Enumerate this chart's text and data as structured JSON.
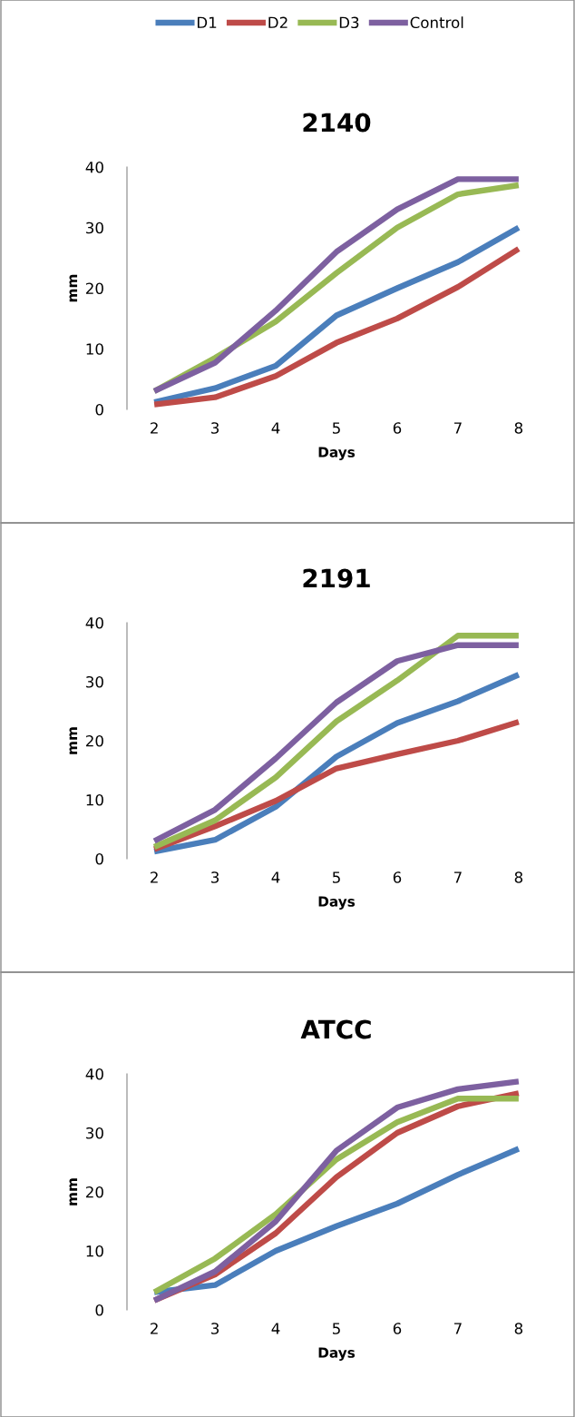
{
  "chart_data": [
    {
      "type": "line",
      "title": "2140",
      "xlabel": "Days",
      "ylabel": "mm",
      "categories": [
        "2",
        "3",
        "4",
        "5",
        "6",
        "7",
        "8"
      ],
      "ylim": [
        0,
        40
      ],
      "yticks": [
        0,
        10,
        20,
        30,
        40
      ],
      "grid": false,
      "legend": "top",
      "marker": "none",
      "line_style": "solid",
      "series": [
        {
          "name": "D1",
          "color": "#4a7ebb",
          "values": [
            1.2,
            3.5,
            7.2,
            15.5,
            20,
            24.3,
            30
          ]
        },
        {
          "name": "D2",
          "color": "#be4b48",
          "values": [
            0.8,
            2,
            5.5,
            11,
            15,
            20.2,
            26.5
          ]
        },
        {
          "name": "D3",
          "color": "#98b954",
          "values": [
            3,
            8.5,
            14.5,
            22.5,
            30,
            35.5,
            37
          ]
        },
        {
          "name": "Control",
          "color": "#7d60a0",
          "values": [
            3,
            7.7,
            16.3,
            26,
            33,
            38,
            38
          ]
        }
      ]
    },
    {
      "type": "line",
      "title": "2191",
      "xlabel": "Days",
      "ylabel": "mm",
      "categories": [
        "2",
        "3",
        "4",
        "5",
        "6",
        "7",
        "8"
      ],
      "ylim": [
        0,
        40
      ],
      "yticks": [
        0,
        10,
        20,
        30,
        40
      ],
      "grid": false,
      "marker": "none",
      "line_style": "solid",
      "series": [
        {
          "color": "#4a7ebb",
          "values": [
            1.2,
            3.2,
            8.8,
            17.3,
            23,
            26.7,
            31.2
          ]
        },
        {
          "color": "#be4b48",
          "values": [
            1.6,
            5.5,
            9.8,
            15.3,
            17.7,
            20,
            23.2
          ]
        },
        {
          "color": "#98b954",
          "values": [
            2,
            6.5,
            13.8,
            23.3,
            30.2,
            37.8,
            37.8
          ]
        },
        {
          "color": "#7d60a0",
          "values": [
            3,
            8.3,
            17,
            26.5,
            33.5,
            36.2,
            36.2
          ]
        }
      ]
    },
    {
      "type": "line",
      "title": "ATCC",
      "xlabel": "Days",
      "ylabel": "mm",
      "categories": [
        "2",
        "3",
        "4",
        "5",
        "6",
        "7",
        "8"
      ],
      "ylim": [
        0,
        40
      ],
      "yticks": [
        0,
        10,
        20,
        30,
        40
      ],
      "grid": false,
      "marker": "none",
      "line_style": "solid",
      "series": [
        {
          "color": "#4a7ebb",
          "values": [
            3,
            4.2,
            10,
            14.2,
            18,
            22.9,
            27.3
          ]
        },
        {
          "color": "#be4b48",
          "values": [
            1.6,
            6,
            13,
            22.5,
            30,
            34.5,
            36.7
          ]
        },
        {
          "color": "#98b954",
          "values": [
            3,
            8.7,
            16.2,
            25.5,
            31.8,
            35.8,
            35.8
          ]
        },
        {
          "color": "#7d60a0",
          "values": [
            1.6,
            6.5,
            15,
            27,
            34.3,
            37.4,
            38.7
          ]
        }
      ]
    }
  ]
}
